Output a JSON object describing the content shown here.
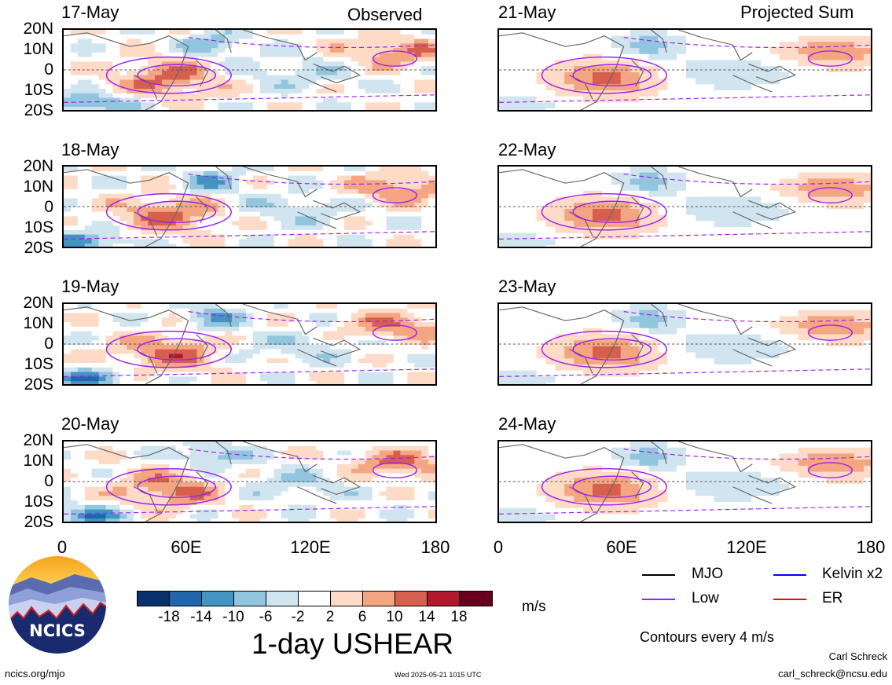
{
  "headers": {
    "left": "Observed",
    "right": "Projected Sum"
  },
  "panels": [
    {
      "date": "17-May",
      "group": "observed"
    },
    {
      "date": "18-May",
      "group": "observed"
    },
    {
      "date": "19-May",
      "group": "observed"
    },
    {
      "date": "20-May",
      "group": "observed"
    },
    {
      "date": "21-May",
      "group": "projected"
    },
    {
      "date": "22-May",
      "group": "projected"
    },
    {
      "date": "23-May",
      "group": "projected"
    },
    {
      "date": "24-May",
      "group": "projected"
    }
  ],
  "lat_labels": [
    "20N",
    "10N",
    "0",
    "10S",
    "20S"
  ],
  "lon_labels": [
    "0",
    "60E",
    "120E",
    "180"
  ],
  "colorbar": {
    "colors": [
      "#08306b",
      "#2166ac",
      "#4393c3",
      "#92c5de",
      "#d1e5f0",
      "#ffffff",
      "#fddbc7",
      "#f4a582",
      "#d6604d",
      "#b2182b",
      "#67001f"
    ],
    "labels": [
      "-18",
      "-14",
      "-10",
      "-6",
      "-2",
      "2",
      "6",
      "10",
      "14",
      "18"
    ],
    "units": "m/s"
  },
  "title": "1-day USHEAR",
  "legend": [
    {
      "label": "MJO",
      "color": "#000000"
    },
    {
      "label": "Kelvin x2",
      "color": "#0000ff"
    },
    {
      "label": "Low",
      "color": "#a020f0"
    },
    {
      "label": "ER",
      "color": "#ff0000"
    }
  ],
  "contours_note": "Contours every 4 m/s",
  "logo_text": "NCICS",
  "footer": {
    "url": "ncics.org/mjo",
    "timestamp": "Wed 2025-05-21 1015 UTC",
    "author": "Carl Schreck",
    "email": "carl_schreck@ncsu.edu"
  }
}
